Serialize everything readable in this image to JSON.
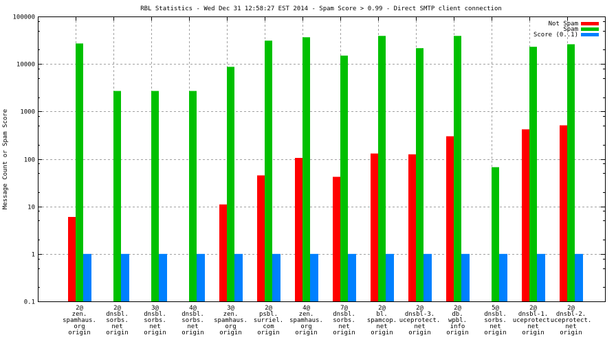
{
  "chart_data": {
    "type": "bar",
    "title": "RBL Statistics - Wed Dec 31 12:58:27 EST 2014 - Spam Score > 0.99 - Direct SMTP client connection",
    "xlabel": "",
    "ylabel": "Message Count or Spam Score",
    "yscale": "log",
    "ylim": [
      0.1,
      100000
    ],
    "yticks": [
      "0.1",
      "1",
      "10",
      "100",
      "1000",
      "10000",
      "100000"
    ],
    "ytick_values": [
      0.1,
      1,
      10,
      100,
      1000,
      10000,
      100000
    ],
    "grid": true,
    "legend_position": "top-right",
    "categories": [
      [
        "2@",
        "zen.",
        "spamhaus.",
        "org",
        "origin"
      ],
      [
        "2@",
        "dnsbl.",
        "sorbs.",
        "net",
        "origin"
      ],
      [
        "3@",
        "dnsbl.",
        "sorbs.",
        "net",
        "origin"
      ],
      [
        "4@",
        "dnsbl.",
        "sorbs.",
        "net",
        "origin"
      ],
      [
        "3@",
        "zen.",
        "spamhaus.",
        "org",
        "origin"
      ],
      [
        "2@",
        "psbl.",
        "surriel.",
        "com",
        "origin"
      ],
      [
        "4@",
        "zen.",
        "spamhaus.",
        "org",
        "origin"
      ],
      [
        "7@",
        "dnsbl.",
        "sorbs.",
        "net",
        "origin"
      ],
      [
        "2@",
        "bl.",
        "spamcop.",
        "net",
        "origin"
      ],
      [
        "2@",
        "dnsbl-3.",
        "uceprotect.",
        "net",
        "origin"
      ],
      [
        "2@",
        "db.",
        "wpbl.",
        "info",
        "origin"
      ],
      [
        "5@",
        "dnsbl.",
        "sorbs.",
        "net",
        "origin"
      ],
      [
        "2@",
        "dnsbl-1.",
        "uceprotect.",
        "net",
        "origin"
      ],
      [
        "2@",
        "dnsbl-2.",
        "uceprotect.",
        "net",
        "origin"
      ]
    ],
    "series": [
      {
        "name": "Not Spam",
        "color": "#ff0000",
        "values": [
          6,
          0,
          0,
          0,
          11,
          45,
          105,
          42,
          130,
          125,
          300,
          0,
          420,
          510
        ]
      },
      {
        "name": "Spam",
        "color": "#00c000",
        "values": [
          27000,
          2700,
          2700,
          2700,
          8700,
          31000,
          36500,
          15000,
          39000,
          21500,
          39000,
          67,
          23000,
          26000
        ]
      },
      {
        "name": "Score (0..1)",
        "color": "#0080ff",
        "values": [
          1,
          1,
          1,
          1,
          1,
          1,
          1,
          1,
          1,
          1,
          1,
          1,
          1,
          1
        ]
      }
    ]
  }
}
